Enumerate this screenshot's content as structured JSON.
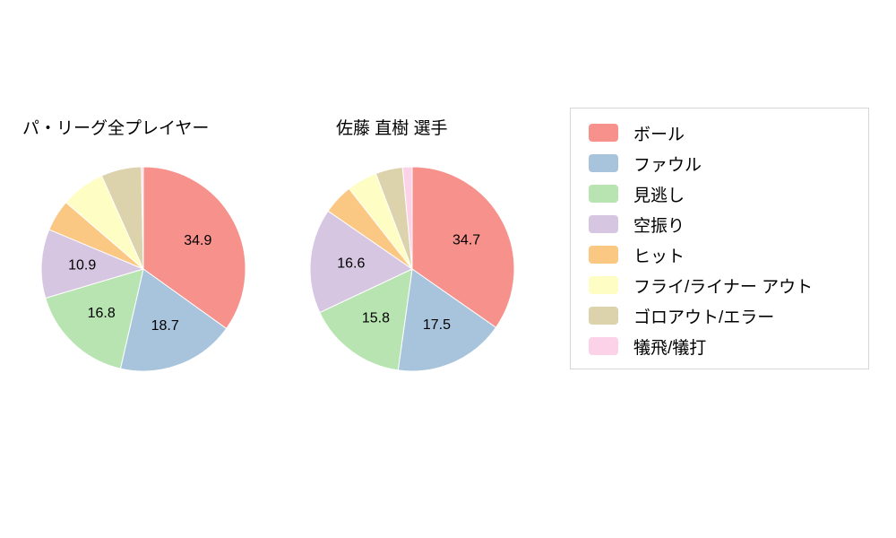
{
  "chart_data": [
    {
      "type": "pie",
      "title": "パ・リーグ全プレイヤー",
      "start_angle_deg_from_top": 0,
      "direction": "clockwise",
      "categories": [
        "ボール",
        "ファウル",
        "見逃し",
        "空振り",
        "ヒット",
        "フライ/ライナー アウト",
        "ゴロアウト/エラー",
        "犠飛/犠打"
      ],
      "values": [
        34.9,
        18.7,
        16.8,
        10.9,
        5.0,
        7.0,
        6.4,
        0.3
      ],
      "labels": [
        "34.9",
        "18.7",
        "16.8",
        "10.9",
        "",
        "",
        "",
        ""
      ],
      "colors": [
        "#f7918c",
        "#a7c4dc",
        "#b7e4b0",
        "#d7c6e2",
        "#fbc884",
        "#fdfdc4",
        "#dcd2ac",
        "#fcd2e9"
      ]
    },
    {
      "type": "pie",
      "title": "佐藤 直樹  選手",
      "start_angle_deg_from_top": 0,
      "direction": "clockwise",
      "categories": [
        "ボール",
        "ファウル",
        "見逃し",
        "空振り",
        "ヒット",
        "フライ/ライナー アウト",
        "ゴロアウト/エラー",
        "犠飛/犠打"
      ],
      "values": [
        34.7,
        17.5,
        15.8,
        16.6,
        4.8,
        4.8,
        4.3,
        1.5
      ],
      "labels": [
        "34.7",
        "17.5",
        "15.8",
        "16.6",
        "",
        "",
        "",
        ""
      ],
      "colors": [
        "#f7918c",
        "#a7c4dc",
        "#b7e4b0",
        "#d7c6e2",
        "#fbc884",
        "#fdfdc4",
        "#dcd2ac",
        "#fcd2e9"
      ]
    }
  ],
  "legend": {
    "items": [
      {
        "label": "ボール",
        "color": "#f7918c"
      },
      {
        "label": "ファウル",
        "color": "#a7c4dc"
      },
      {
        "label": "見逃し",
        "color": "#b7e4b0"
      },
      {
        "label": "空振り",
        "color": "#d7c6e2"
      },
      {
        "label": "ヒット",
        "color": "#fbc884"
      },
      {
        "label": "フライ/ライナー アウト",
        "color": "#fdfdc4"
      },
      {
        "label": "ゴロアウト/エラー",
        "color": "#dcd2ac"
      },
      {
        "label": "犠飛/犠打",
        "color": "#fcd2e9"
      }
    ]
  }
}
